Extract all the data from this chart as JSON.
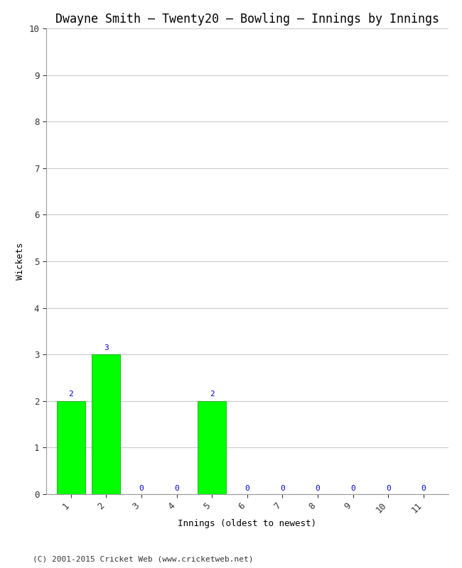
{
  "title": "Dwayne Smith – Twenty20 – Bowling – Innings by Innings",
  "xlabel": "Innings (oldest to newest)",
  "ylabel": "Wickets",
  "categories": [
    1,
    2,
    3,
    4,
    5,
    6,
    7,
    8,
    9,
    10,
    11
  ],
  "values": [
    2,
    3,
    0,
    0,
    2,
    0,
    0,
    0,
    0,
    0,
    0
  ],
  "bar_color": "#00ff00",
  "bar_edge_color": "#009900",
  "label_color": "#0000cc",
  "ylim": [
    0,
    10
  ],
  "yticks": [
    0,
    1,
    2,
    3,
    4,
    5,
    6,
    7,
    8,
    9,
    10
  ],
  "footnote": "(C) 2001-2015 Cricket Web (www.cricketweb.net)",
  "bg_color": "#ffffff",
  "plot_bg_color": "#ffffff",
  "grid_color": "#cccccc",
  "title_fontsize": 12,
  "label_fontsize": 9,
  "tick_fontsize": 9,
  "annot_fontsize": 8,
  "footnote_fontsize": 8
}
